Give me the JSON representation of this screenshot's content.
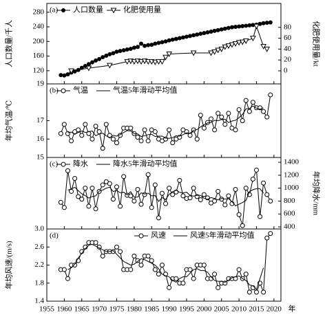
{
  "chart_data": [
    {
      "type": "line",
      "panel_label": "(a)",
      "ylabel": "人口数量/千人",
      "y2label": "化肥使用量/kt",
      "ylim": [
        84,
        304
      ],
      "yticks": [
        120,
        160,
        200,
        240,
        280
      ],
      "y2lim": [
        -24,
        124
      ],
      "y2ticks": [
        0,
        20,
        40,
        60,
        80
      ],
      "x": [
        1959,
        1960,
        1961,
        1962,
        1963,
        1964,
        1965,
        1966,
        1967,
        1968,
        1969,
        1970,
        1971,
        1972,
        1973,
        1974,
        1975,
        1976,
        1977,
        1978,
        1979,
        1980,
        1981,
        1982,
        1983,
        1984,
        1985,
        1986,
        1987,
        1988,
        1989,
        1990,
        1991,
        1992,
        1993,
        1994,
        1995,
        1996,
        1997,
        1998,
        1999,
        2000,
        2001,
        2002,
        2003,
        2004,
        2005,
        2006,
        2007,
        2008,
        2009,
        2010,
        2011,
        2012,
        2013,
        2014,
        2015,
        2016,
        2017,
        2018,
        2019
      ],
      "series": [
        {
          "name": "人口数量",
          "color": "#000000",
          "marker": "filled-circle",
          "values": [
            108,
            107,
            110,
            115,
            118,
            122,
            128,
            133,
            138,
            143,
            148,
            152,
            157,
            161,
            165,
            168,
            172,
            174,
            176,
            178,
            180,
            183,
            185,
            194,
            188,
            190,
            191,
            194,
            196,
            198,
            200,
            203,
            205,
            207,
            209,
            211,
            213,
            215,
            217,
            219,
            221,
            223,
            225,
            227,
            229,
            231,
            233,
            235,
            237,
            239,
            240,
            241,
            242,
            243,
            244,
            245,
            246,
            248,
            250,
            251,
            252
          ]
        },
        {
          "name": "化肥使用量",
          "color": "#000000",
          "marker": "triangle",
          "axis": "y2",
          "x": [
            1962,
            1967,
            1973,
            1978,
            1979,
            1980,
            1981,
            1982,
            1983,
            1984,
            1985,
            1986,
            1987,
            1988,
            1989,
            1990,
            1997,
            2002,
            2003,
            2004,
            2005,
            2006,
            2007,
            2008,
            2009,
            2010,
            2011,
            2012,
            2014,
            2015,
            2017,
            2018
          ],
          "values": [
            0,
            5,
            10,
            17,
            18,
            17,
            18,
            17,
            18,
            17,
            17,
            16,
            17,
            17,
            25,
            31,
            33,
            33,
            35,
            38,
            40,
            44,
            46,
            48,
            50,
            52,
            53,
            55,
            60,
            82,
            45,
            40
          ]
        }
      ]
    },
    {
      "type": "line",
      "panel_label": "(b)",
      "ylabel": "年均气温/℃",
      "ylim": [
        15,
        19
      ],
      "yticks": [
        15,
        16,
        17,
        19
      ],
      "x": [
        1959,
        1960,
        1961,
        1962,
        1963,
        1964,
        1965,
        1966,
        1967,
        1968,
        1969,
        1970,
        1971,
        1972,
        1973,
        1974,
        1975,
        1976,
        1977,
        1978,
        1979,
        1980,
        1981,
        1982,
        1983,
        1984,
        1985,
        1986,
        1987,
        1988,
        1989,
        1990,
        1991,
        1992,
        1993,
        1994,
        1995,
        1996,
        1997,
        1998,
        1999,
        2000,
        2001,
        2002,
        2003,
        2004,
        2005,
        2006,
        2007,
        2008,
        2009,
        2010,
        2011,
        2012,
        2013,
        2014,
        2015,
        2016,
        2017,
        2018,
        2019
      ],
      "series": [
        {
          "name": "气温",
          "color": "#000000",
          "marker": "circle",
          "values": [
            16.3,
            16.8,
            16.3,
            15.9,
            16.4,
            16.5,
            16.2,
            16.8,
            16.3,
            16.0,
            16.7,
            16.4,
            15.5,
            16.8,
            16.2,
            16.0,
            15.8,
            16.2,
            16.6,
            16.6,
            16.6,
            16.3,
            16.1,
            15.9,
            16.5,
            15.9,
            16.5,
            16.4,
            16.0,
            15.9,
            16.0,
            16.5,
            15.8,
            16.0,
            16.1,
            16.5,
            16.4,
            16.2,
            16.5,
            16.0,
            17.3,
            16.6,
            16.9,
            17.1,
            16.5,
            17.4,
            17.2,
            16.8,
            17.4,
            16.6,
            16.5,
            17.6,
            17.0,
            18.1,
            17.5,
            18.0,
            17.7,
            17.7,
            17.5,
            17.2,
            18.4
          ]
        },
        {
          "name": "气温5年滑动平均值",
          "color": "#000000",
          "marker": "none",
          "values": [
            null,
            null,
            16.34,
            16.38,
            16.26,
            16.36,
            16.44,
            16.36,
            16.4,
            16.44,
            16.18,
            16.28,
            16.32,
            16.18,
            16.06,
            16.2,
            16.16,
            16.24,
            16.36,
            16.46,
            16.44,
            16.3,
            16.28,
            16.14,
            16.18,
            16.24,
            16.26,
            16.14,
            16.16,
            16.16,
            16.04,
            16.04,
            16.08,
            16.18,
            16.16,
            16.24,
            16.34,
            16.32,
            16.48,
            16.52,
            16.66,
            16.78,
            16.88,
            16.9,
            17.02,
            17.0,
            17.06,
            17.08,
            16.9,
            16.98,
            17.02,
            17.16,
            17.34,
            17.64,
            17.66,
            17.8,
            17.68,
            17.62,
            17.7,
            null,
            null
          ]
        }
      ]
    },
    {
      "type": "line",
      "panel_label": "(c)",
      "y2label": "年均降水/mm",
      "y2lim": [
        368,
        1475
      ],
      "y2ticks": [
        400,
        600,
        800,
        1000,
        1200,
        1400
      ],
      "x": [
        1959,
        1960,
        1961,
        1962,
        1963,
        1964,
        1965,
        1966,
        1967,
        1968,
        1969,
        1970,
        1971,
        1972,
        1973,
        1974,
        1975,
        1976,
        1977,
        1978,
        1979,
        1980,
        1981,
        1982,
        1983,
        1984,
        1985,
        1986,
        1987,
        1988,
        1989,
        1990,
        1991,
        1992,
        1993,
        1994,
        1995,
        1996,
        1997,
        1998,
        1999,
        2000,
        2001,
        2002,
        2003,
        2004,
        2005,
        2006,
        2007,
        2008,
        2009,
        2010,
        2011,
        2012,
        2013,
        2014,
        2015,
        2016,
        2017,
        2018,
        2019
      ],
      "series": [
        {
          "name": "降水",
          "color": "#000000",
          "marker": "circle",
          "axis": "y2",
          "values": [
            780,
            700,
            1270,
            950,
            1150,
            870,
            830,
            1000,
            720,
            1000,
            680,
            950,
            1050,
            1100,
            1070,
            830,
            1020,
            720,
            1180,
            890,
            880,
            800,
            980,
            750,
            900,
            1210,
            700,
            1050,
            540,
            920,
            760,
            1000,
            900,
            940,
            1120,
            880,
            840,
            850,
            1000,
            870,
            820,
            900,
            850,
            770,
            800,
            950,
            830,
            740,
            880,
            760,
            980,
            590,
            420,
            1000,
            900,
            1140,
            1280,
            560,
            1080,
            900,
            800
          ]
        },
        {
          "name": "降水5年滑动平均值",
          "color": "#000000",
          "marker": "none",
          "axis": "y2",
          "values": [
            null,
            null,
            970,
            988,
            1014,
            960,
            914,
            884,
            846,
            870,
            880,
            956,
            970,
            1000,
            1014,
            948,
            964,
            928,
            938,
            894,
            946,
            860,
            862,
            928,
            908,
            922,
            880,
            884,
            794,
            854,
            824,
            904,
            944,
            968,
            936,
            926,
            938,
            888,
            876,
            888,
            888,
            842,
            828,
            854,
            840,
            818,
            840,
            832,
            838,
            790,
            726,
            750,
            778,
            810,
            948,
            976,
            992,
            992,
            924,
            null,
            null
          ]
        }
      ]
    },
    {
      "type": "line",
      "panel_label": "(d)",
      "ylabel": "年均风速/(m/s)",
      "xlabel": "年",
      "ylim": [
        1.4,
        3.0
      ],
      "yticks": [
        {
          "value": 1.4,
          "label": "1.4"
        },
        1.8,
        2.2,
        2.6,
        {
          "value": 3.0,
          "label": "3.0"
        }
      ],
      "xlim": [
        1955,
        2022
      ],
      "xticks": [
        1955,
        1960,
        1965,
        1970,
        1975,
        1980,
        1985,
        1990,
        1995,
        2000,
        2005,
        2010,
        2015,
        2020
      ],
      "x": [
        1959,
        1960,
        1961,
        1962,
        1963,
        1964,
        1965,
        1966,
        1967,
        1968,
        1969,
        1970,
        1971,
        1972,
        1973,
        1974,
        1975,
        1976,
        1977,
        1978,
        1979,
        1980,
        1981,
        1982,
        1983,
        1984,
        1985,
        1986,
        1987,
        1988,
        1989,
        1990,
        1991,
        1992,
        1993,
        1994,
        1995,
        1996,
        1997,
        1998,
        1999,
        2000,
        2001,
        2002,
        2003,
        2004,
        2005,
        2006,
        2007,
        2008,
        2009,
        2010,
        2011,
        2012,
        2013,
        2014,
        2015,
        2016,
        2017,
        2018,
        2019
      ],
      "series": [
        {
          "name": "风速",
          "color": "#000000",
          "marker": "circle",
          "values": [
            2.1,
            2.1,
            1.9,
            2.2,
            2.2,
            2.3,
            2.5,
            2.6,
            2.7,
            2.7,
            2.7,
            2.6,
            2.4,
            2.5,
            2.5,
            2.5,
            2.6,
            2.5,
            2.1,
            2.1,
            2.1,
            2.4,
            2.3,
            2.2,
            2.4,
            2.4,
            2.3,
            2.1,
            2.0,
            2.2,
            2.0,
            1.7,
            1.9,
            1.9,
            1.8,
            1.8,
            2.1,
            2.1,
            1.9,
            2.2,
            2.2,
            2.2,
            1.9,
            1.9,
            2.0,
            1.7,
            1.8,
            1.8,
            1.9,
            1.9,
            1.9,
            2.1,
            1.9,
            2.0,
            1.6,
            1.7,
            1.6,
            1.8,
            1.6,
            2.8,
            2.9
          ]
        },
        {
          "name": "风速5年滑动平均值",
          "color": "#000000",
          "marker": "none",
          "values": [
            null,
            null,
            2.1,
            2.14,
            2.22,
            2.36,
            2.46,
            2.56,
            2.64,
            2.66,
            2.62,
            2.58,
            2.54,
            2.5,
            2.5,
            2.52,
            2.44,
            2.36,
            2.28,
            2.24,
            2.2,
            2.22,
            2.28,
            2.34,
            2.32,
            2.28,
            2.24,
            2.2,
            2.12,
            2.0,
            1.96,
            1.94,
            1.86,
            1.82,
            1.9,
            1.94,
            1.94,
            2.02,
            2.1,
            2.12,
            2.08,
            2.08,
            2.04,
            1.94,
            1.86,
            1.84,
            1.84,
            1.82,
            1.86,
            1.92,
            1.94,
            1.96,
            1.9,
            1.86,
            1.76,
            1.74,
            1.66,
            1.9,
            2.14,
            null,
            null
          ]
        }
      ]
    }
  ]
}
